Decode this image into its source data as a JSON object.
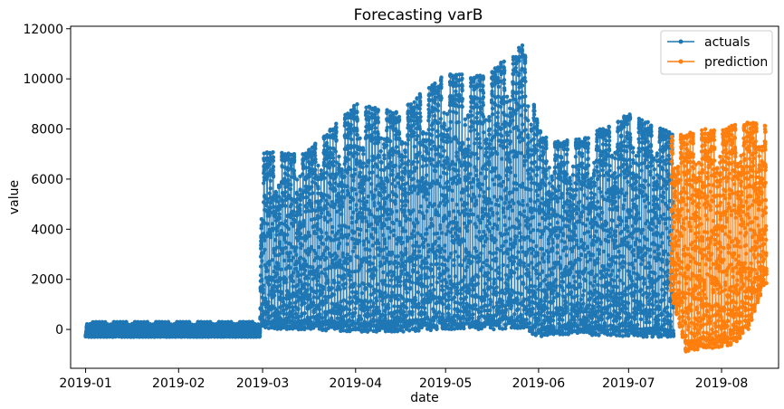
{
  "chart_data": {
    "type": "scatter",
    "title": "Forecasting varB",
    "xlabel": "date",
    "ylabel": "value",
    "x_tick_labels": [
      "2019-01",
      "2019-02",
      "2019-03",
      "2019-04",
      "2019-05",
      "2019-06",
      "2019-07",
      "2019-08"
    ],
    "x_range": [
      "2018-12-27",
      "2019-08-20"
    ],
    "y_ticks": [
      0,
      2000,
      4000,
      6000,
      8000,
      10000,
      12000
    ],
    "ylim": [
      -1550,
      12100
    ],
    "grid": false,
    "legend": {
      "position": "top-right",
      "entries": [
        "actuals",
        "prediction"
      ]
    },
    "series": [
      {
        "name": "actuals",
        "color": "#1f77b4",
        "envelope": {
          "x": [
            "2019-01-01",
            "2019-02-28",
            "2019-03-01",
            "2019-03-15",
            "2019-04-01",
            "2019-04-15",
            "2019-05-01",
            "2019-05-15",
            "2019-05-27",
            "2019-06-01",
            "2019-06-05",
            "2019-06-15",
            "2019-07-01",
            "2019-07-15"
          ],
          "lower": [
            -300,
            -300,
            0,
            0,
            -100,
            -100,
            0,
            0,
            0,
            -300,
            -200,
            -200,
            -300,
            -300
          ],
          "upper": [
            300,
            300,
            7100,
            7000,
            9000,
            8700,
            10200,
            10200,
            11400,
            8000,
            7500,
            7600,
            8600,
            7900
          ]
        }
      },
      {
        "name": "prediction",
        "color": "#ff7f0e",
        "envelope": {
          "x": [
            "2019-07-15",
            "2019-07-20",
            "2019-07-25",
            "2019-08-01",
            "2019-08-05",
            "2019-08-10",
            "2019-08-15"
          ],
          "lower": [
            1500,
            -900,
            -800,
            -700,
            -600,
            0,
            1700
          ],
          "upper": [
            7800,
            7800,
            8000,
            8000,
            8200,
            8300,
            8200
          ]
        }
      }
    ]
  }
}
